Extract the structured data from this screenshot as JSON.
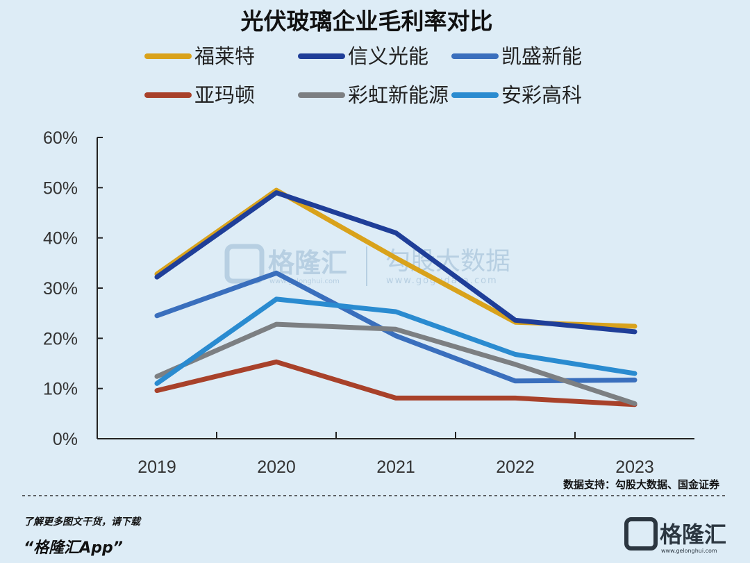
{
  "chart_data": {
    "type": "line",
    "title": "光伏玻璃企业毛利率对比",
    "categories": [
      "2019",
      "2020",
      "2021",
      "2022",
      "2023"
    ],
    "ylim": [
      0,
      60
    ],
    "y_ticks": [
      "0%",
      "10%",
      "20%",
      "30%",
      "40%",
      "50%",
      "60%"
    ],
    "grid": false,
    "legend_position": "top",
    "series": [
      {
        "name": "福莱特",
        "color": "#d9a21b",
        "values": [
          32.8,
          49.5,
          36.0,
          23.2,
          22.4
        ]
      },
      {
        "name": "信义光能",
        "color": "#1f3e98",
        "values": [
          32.2,
          49.0,
          41.0,
          23.6,
          21.3
        ]
      },
      {
        "name": "凯盛新能",
        "color": "#3a6fbd",
        "values": [
          24.5,
          33.0,
          20.5,
          11.5,
          11.7
        ]
      },
      {
        "name": "亚玛顿",
        "color": "#a8412a",
        "values": [
          9.6,
          15.3,
          8.1,
          8.1,
          6.8
        ]
      },
      {
        "name": "彩虹新能源",
        "color": "#7c7f82",
        "values": [
          12.4,
          22.8,
          21.8,
          14.8,
          7.0
        ]
      },
      {
        "name": "安彩高科",
        "color": "#2a8bd0",
        "values": [
          11.0,
          27.8,
          25.3,
          16.8,
          13.0
        ]
      }
    ],
    "source": "数据支持：勾股大数据、国金证券"
  },
  "watermark": {
    "brand": "格隆汇",
    "brand_url": "www.gelonghui.com",
    "data_brand": "勾股大数据",
    "data_url": "www.gogudata.com"
  },
  "footer": {
    "line1": "了解更多图文干货，请下载",
    "line2": "“格隆汇App”",
    "logo_text": "格隆汇",
    "logo_url": "www.gelonghui.com"
  },
  "colors": {
    "background": "#ddecf6",
    "axis": "#222222",
    "watermark": "#b3cce0"
  }
}
